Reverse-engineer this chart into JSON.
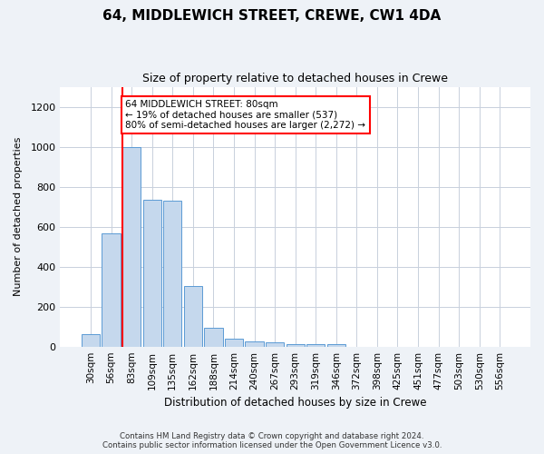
{
  "title": "64, MIDDLEWICH STREET, CREWE, CW1 4DA",
  "subtitle": "Size of property relative to detached houses in Crewe",
  "xlabel": "Distribution of detached houses by size in Crewe",
  "ylabel": "Number of detached properties",
  "bar_color": "#c5d8ed",
  "bar_edge_color": "#5b9bd5",
  "categories": [
    "30sqm",
    "56sqm",
    "83sqm",
    "109sqm",
    "135sqm",
    "162sqm",
    "188sqm",
    "214sqm",
    "240sqm",
    "267sqm",
    "293sqm",
    "319sqm",
    "346sqm",
    "372sqm",
    "398sqm",
    "425sqm",
    "451sqm",
    "477sqm",
    "503sqm",
    "530sqm",
    "556sqm"
  ],
  "values": [
    62,
    567,
    1000,
    735,
    730,
    305,
    95,
    38,
    26,
    20,
    14,
    10,
    10,
    0,
    0,
    0,
    0,
    0,
    0,
    0,
    0
  ],
  "ylim": [
    0,
    1300
  ],
  "yticks": [
    0,
    200,
    400,
    600,
    800,
    1000,
    1200
  ],
  "property_line_bar_index": 2,
  "annotation_text": "64 MIDDLEWICH STREET: 80sqm\n← 19% of detached houses are smaller (537)\n80% of semi-detached houses are larger (2,272) →",
  "footer1": "Contains HM Land Registry data © Crown copyright and database right 2024.",
  "footer2": "Contains public sector information licensed under the Open Government Licence v3.0.",
  "background_color": "#eef2f7",
  "plot_bg_color": "#ffffff",
  "grid_color": "#c8d0dc"
}
